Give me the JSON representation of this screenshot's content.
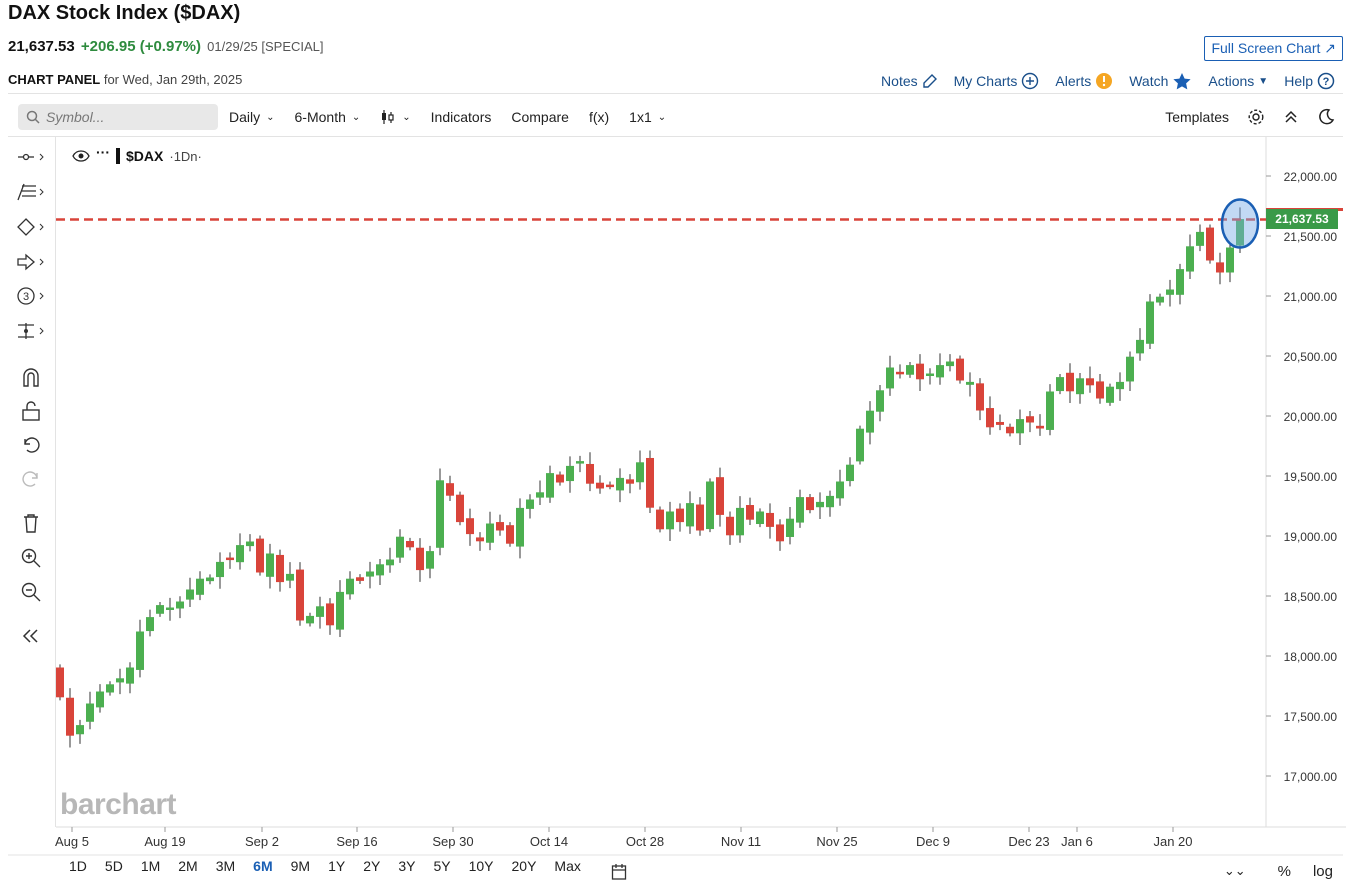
{
  "header": {
    "title": "DAX Stock Index ($DAX)",
    "price": "21,637.53",
    "change": "+206.95 (+0.97%)",
    "date": "01/29/25 [SPECIAL]",
    "full_screen_label": "Full Screen Chart ↗"
  },
  "panel": {
    "label": "CHART PANEL",
    "date_text": "for Wed, Jan 29th, 2025"
  },
  "top_links": {
    "notes": "Notes",
    "my_charts": "My Charts",
    "alerts": "Alerts",
    "watch": "Watch",
    "actions": "Actions",
    "help": "Help"
  },
  "toolbar": {
    "search_placeholder": "Symbol...",
    "interval": "Daily",
    "range": "6-Month",
    "indicators": "Indicators",
    "compare": "Compare",
    "fx": "f(x)",
    "layout": "1x1",
    "templates": "Templates"
  },
  "legend": {
    "symbol": "$DAX",
    "interval": "·1Dn·"
  },
  "left_tools": [
    "crosshair-tool-icon",
    "fib-tool-icon",
    "shape-tool-icon",
    "arrow-tool-icon",
    "counter-tool-icon",
    "measure-tool-icon",
    "magnet-icon",
    "lock-icon",
    "undo-icon",
    "redo-icon",
    "trash-icon",
    "zoom-in-icon",
    "zoom-out-icon",
    "collapse-icon"
  ],
  "watermark": "barchart",
  "range_buttons": [
    "1D",
    "5D",
    "1M",
    "2M",
    "3M",
    "6M",
    "9M",
    "1Y",
    "2Y",
    "3Y",
    "5Y",
    "10Y",
    "20Y",
    "Max"
  ],
  "active_range": "6M",
  "bottom_toggles": {
    "percent": "%",
    "log": "log"
  },
  "chart_data": {
    "type": "candlestick",
    "y_ticks": [
      "22,000.00",
      "21,500.00",
      "21,000.00",
      "20,500.00",
      "20,000.00",
      "19,500.00",
      "19,000.00",
      "18,500.00",
      "18,000.00",
      "17,500.00",
      "17,000.00"
    ],
    "y_tick_values": [
      22000,
      21500,
      21000,
      20500,
      20000,
      19500,
      19000,
      18500,
      18000,
      17500,
      17000
    ],
    "x_ticks": [
      "Aug 5",
      "Aug 19",
      "Sep 2",
      "Sep 16",
      "Sep 30",
      "Oct 14",
      "Oct 28",
      "Nov 11",
      "Nov 25",
      "Dec 9",
      "Dec 23",
      "Jan 6",
      "Jan 20"
    ],
    "ylim": [
      16600,
      22300
    ],
    "last_price_label": "21,637.53",
    "last_price": 21637.53,
    "up_color": "#4caf50",
    "down_color": "#d9443a",
    "closes": [
      17660,
      17340,
      17420,
      17600,
      17700,
      17760,
      17810,
      17900,
      18200,
      18320,
      18420,
      18400,
      18450,
      18550,
      18640,
      18650,
      18780,
      18810,
      18920,
      18950,
      18700,
      18850,
      18620,
      18680,
      18300,
      18330,
      18410,
      18260,
      18530,
      18640,
      18630,
      18700,
      18760,
      18800,
      18990,
      18910,
      18720,
      18870,
      19460,
      19340,
      19120,
      19020,
      18960,
      19100,
      19050,
      18940,
      19230,
      19300,
      19360,
      19520,
      19450,
      19580,
      19620,
      19440,
      19400,
      19420,
      19480,
      19440,
      19610,
      19240,
      19060,
      19200,
      19120,
      19270,
      19050,
      19450,
      19180,
      19010,
      19230,
      19140,
      19200,
      19080,
      18960,
      19140,
      19320,
      19220,
      19280,
      19330,
      19450,
      19590,
      19890,
      20040,
      20210,
      20400,
      20360,
      20420,
      20310,
      20350,
      20420,
      20450,
      20300,
      20280,
      20050,
      19910,
      19930,
      19860,
      19970,
      19950,
      19900,
      20200,
      20320,
      20210,
      20310,
      20260,
      20150,
      20240,
      20280,
      20490,
      20630,
      20950,
      20990,
      21050,
      21220,
      21410,
      21530,
      21300,
      21200,
      21400,
      21637
    ]
  }
}
